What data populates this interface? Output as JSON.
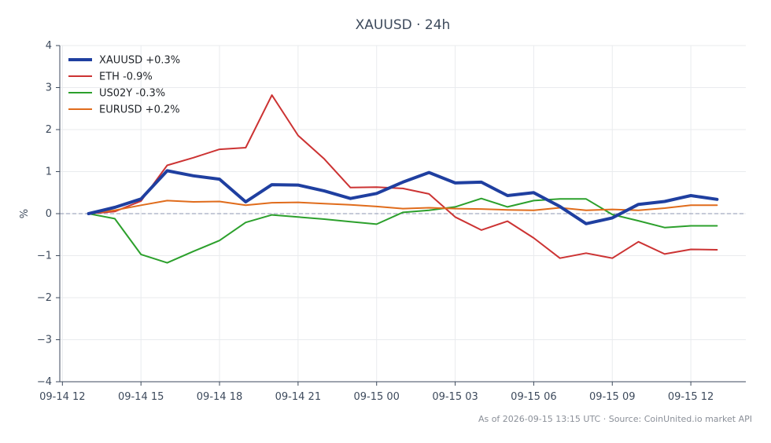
{
  "chart_data": {
    "type": "line",
    "title": "XAUUSD · 24h",
    "xlabel": "",
    "ylabel": "%",
    "ylim": [
      -4,
      4
    ],
    "yticks": [
      4,
      3,
      2,
      1,
      0,
      -1,
      -2,
      -3,
      -4
    ],
    "ytick_labels": [
      "4",
      "3",
      "2",
      "1",
      "0",
      "−1",
      "−2",
      "−3",
      "−4"
    ],
    "xtick_labels": [
      "09-14 12",
      "09-14 15",
      "09-14 18",
      "09-14 21",
      "09-15 00",
      "09-15 03",
      "09-15 06",
      "09-15 09",
      "09-15 12"
    ],
    "xtick_hours": [
      12,
      15,
      18,
      21,
      24,
      27,
      30,
      33,
      36
    ],
    "xlim_hours": [
      11.9,
      38.1
    ],
    "x_hours": [
      13,
      14,
      15,
      16,
      17,
      18,
      19,
      20,
      21,
      22,
      23,
      24,
      25,
      26,
      27,
      28,
      29,
      30,
      31,
      32,
      33,
      34,
      35,
      36,
      37
    ],
    "grid": true,
    "legend_position": "top-left",
    "series": [
      {
        "name": "XAUUSD +0.3%",
        "color": "#1f3fa0",
        "width": 4,
        "values": [
          0.0,
          0.15,
          0.35,
          1.02,
          0.9,
          0.82,
          0.28,
          0.69,
          0.68,
          0.54,
          0.36,
          0.48,
          0.75,
          0.98,
          0.73,
          0.75,
          0.43,
          0.5,
          0.17,
          -0.24,
          -0.1,
          0.22,
          0.29,
          0.43,
          0.34
        ]
      },
      {
        "name": "ETH -0.9%",
        "color": "#cc3333",
        "width": 2,
        "values": [
          0.0,
          0.05,
          0.3,
          1.15,
          1.33,
          1.53,
          1.57,
          2.82,
          1.86,
          1.3,
          0.62,
          0.63,
          0.6,
          0.47,
          -0.08,
          -0.39,
          -0.18,
          -0.58,
          -1.06,
          -0.94,
          -1.06,
          -0.67,
          -0.96,
          -0.85,
          -0.86
        ]
      },
      {
        "name": "US02Y -0.3%",
        "color": "#2ca02c",
        "width": 2,
        "values": [
          0.0,
          -0.12,
          -0.97,
          -1.17,
          -0.9,
          -0.64,
          -0.21,
          -0.03,
          -0.08,
          -0.13,
          -0.19,
          -0.25,
          0.03,
          0.08,
          0.16,
          0.36,
          0.16,
          0.31,
          0.35,
          0.35,
          -0.02,
          -0.17,
          -0.33,
          -0.29,
          -0.29
        ]
      },
      {
        "name": "EURUSD +0.2%",
        "color": "#e06c1c",
        "width": 2,
        "values": [
          0.0,
          0.08,
          0.2,
          0.31,
          0.28,
          0.29,
          0.2,
          0.26,
          0.27,
          0.24,
          0.21,
          0.17,
          0.12,
          0.14,
          0.12,
          0.11,
          0.09,
          0.08,
          0.14,
          0.08,
          0.1,
          0.08,
          0.13,
          0.2,
          0.2
        ]
      }
    ]
  },
  "footer": "As of 2026-09-15 13:15 UTC · Source: CoinUnited.io market API",
  "colors": {
    "axis": "#3d4a5c",
    "grid": "#e9ebee",
    "zero_line": "#8d96b0"
  }
}
